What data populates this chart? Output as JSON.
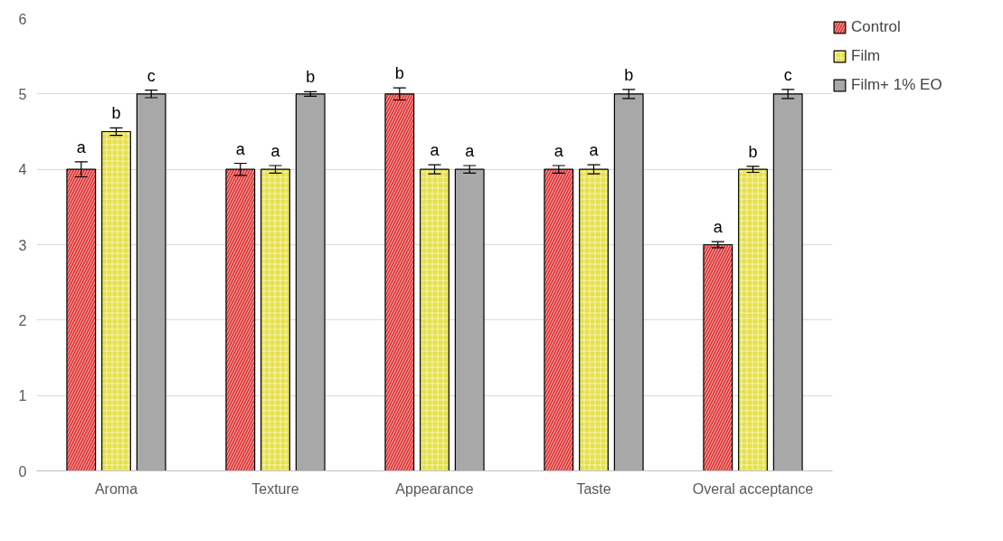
{
  "chart_data": {
    "type": "bar",
    "categories": [
      "Aroma",
      "Texture",
      "Appearance",
      "Taste",
      "Overal acceptance"
    ],
    "series": [
      {
        "name": "Control",
        "color": "#e03a3a",
        "values": [
          4,
          4,
          5,
          4,
          3
        ],
        "errors": [
          0.1,
          0.08,
          0.08,
          0.05,
          0.04
        ],
        "value_labels": [
          "a",
          "a",
          "b",
          "a",
          "a"
        ]
      },
      {
        "name": "Film",
        "color": "#e6e04a",
        "values": [
          4.5,
          4,
          4,
          4,
          4
        ],
        "errors": [
          0.05,
          0.05,
          0.06,
          0.06,
          0.04
        ],
        "value_labels": [
          "b",
          "a",
          "a",
          "a",
          "b"
        ]
      },
      {
        "name": "Film+ 1% EO",
        "color": "#a8a8a8",
        "values": [
          5,
          5,
          4,
          5,
          5
        ],
        "errors": [
          0.05,
          0.03,
          0.05,
          0.06,
          0.06
        ],
        "value_labels": [
          "c",
          "b",
          "a",
          "b",
          "c"
        ]
      }
    ],
    "ylim": [
      0,
      6
    ],
    "yticks": [
      0,
      1,
      2,
      3,
      4,
      5,
      6
    ],
    "grid": "y",
    "legend": "top right"
  }
}
